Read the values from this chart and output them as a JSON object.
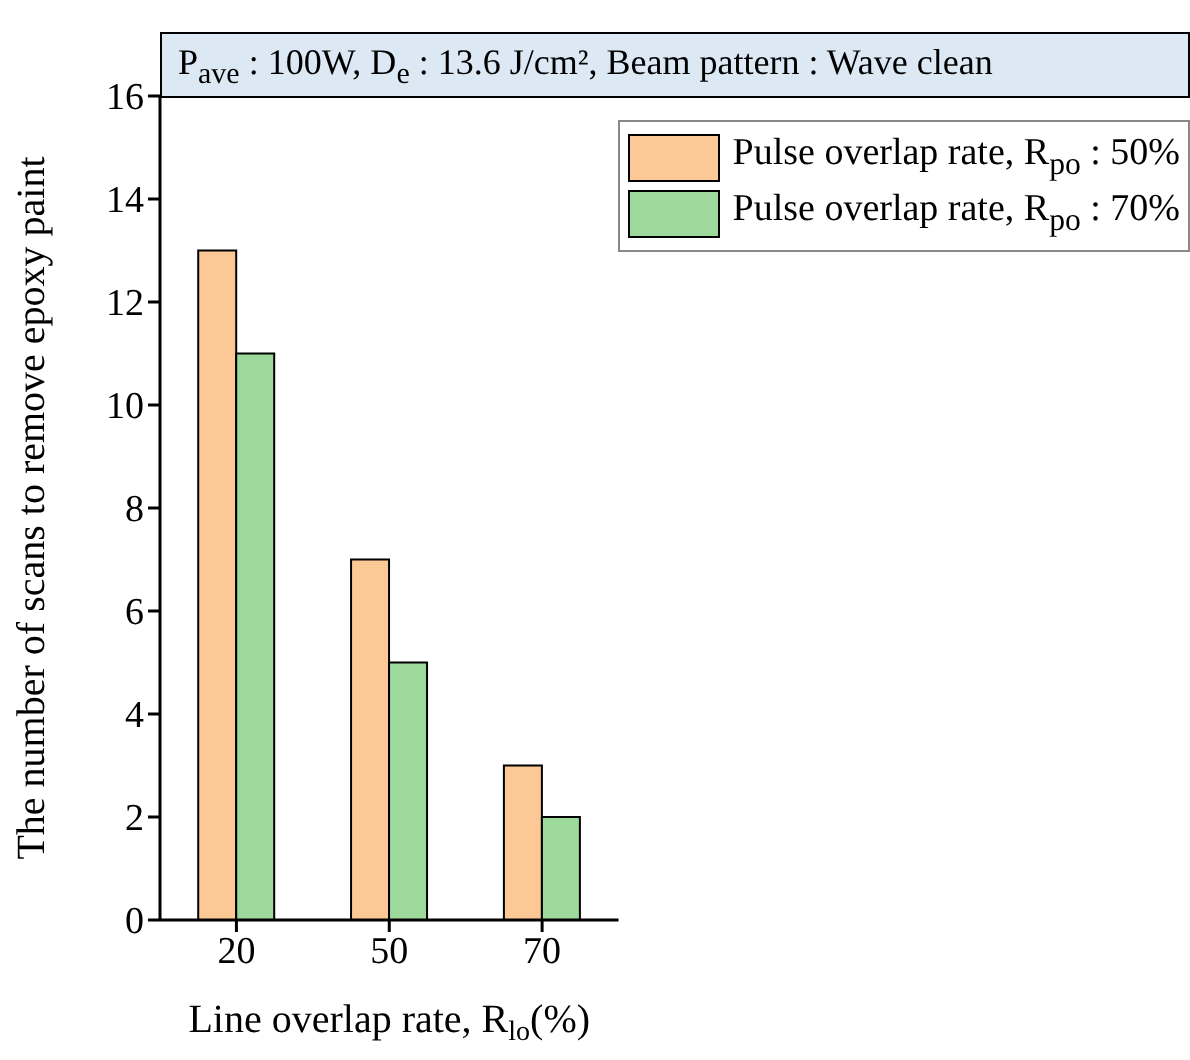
{
  "chart_data": {
    "type": "bar",
    "title": "P$_{ave}$ : 100W,  D$_{e}$ : 13.6 J/cm², Beam pattern : Wave clean",
    "xlabel": "Line overlap rate, R$_{lo}$(%)",
    "ylabel": "The number of scans to remove epoxy paint",
    "categories": [
      "20",
      "50",
      "70"
    ],
    "series": [
      {
        "name": "Pulse overlap rate, R$_{po}$ : 50%",
        "color": "#fcc896",
        "values": [
          13,
          7,
          3
        ]
      },
      {
        "name": "Pulse overlap rate, R$_{po}$ : 70%",
        "color": "#9ed99c",
        "values": [
          11,
          5,
          2
        ]
      }
    ],
    "ylim": [
      0,
      16
    ],
    "yticks": [
      0,
      2,
      4,
      6,
      8,
      10,
      12,
      14,
      16
    ],
    "grid": false,
    "legend": "top right"
  }
}
